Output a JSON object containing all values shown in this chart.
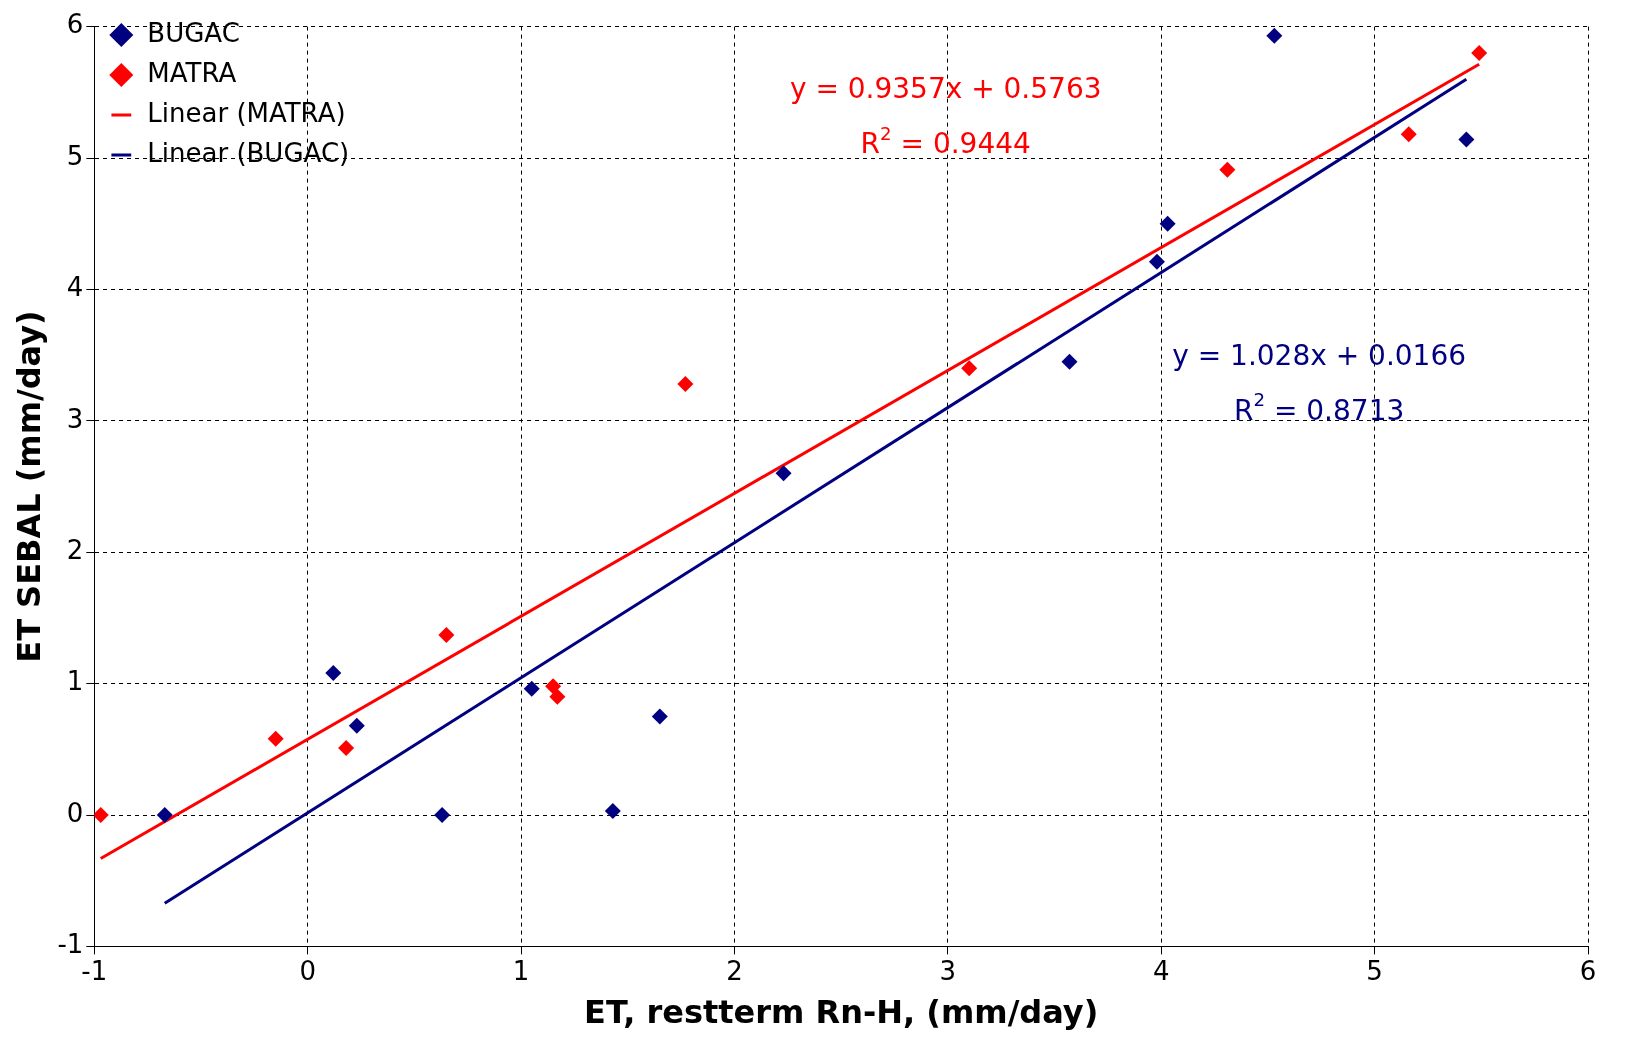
{
  "chart_data": {
    "type": "scatter",
    "xlabel": "ET, restterm Rn-H, (mm/day)",
    "ylabel": "ET SEBAL (mm/day)",
    "xlim": [
      -1,
      6
    ],
    "xticks": [
      -1,
      0,
      1,
      2,
      3,
      4,
      5,
      6
    ],
    "ylim": [
      -1,
      6
    ],
    "yticks": [
      -1,
      0,
      1,
      2,
      3,
      4,
      5,
      6
    ],
    "grid": true,
    "legend": "top left",
    "marker": "diamond",
    "series": [
      {
        "name": "BUGAC",
        "color": "#000080",
        "x": [
          -0.67,
          0.12,
          0.23,
          0.63,
          1.05,
          1.43,
          1.65,
          2.23,
          3.57,
          3.98,
          4.03,
          4.53,
          5.43
        ],
        "values": [
          0,
          1.08,
          0.68,
          0,
          0.96,
          0.03,
          0.75,
          2.6,
          3.45,
          4.21,
          4.5,
          5.93,
          5.14
        ]
      },
      {
        "name": "MATRA",
        "color": "#ff0000",
        "x": [
          -0.97,
          -0.15,
          0.18,
          0.65,
          1.15,
          1.17,
          1.77,
          3.1,
          4.31,
          5.16,
          5.49
        ],
        "values": [
          0,
          0.58,
          0.51,
          1.37,
          0.98,
          0.9,
          3.28,
          3.4,
          4.91,
          5.18,
          5.8
        ]
      },
      {
        "name": "Linear (MATRA)",
        "type": "line",
        "marker": "none",
        "color": "#ff0000",
        "x": [
          -0.97,
          5.49
        ],
        "values": [
          -0.331,
          5.713
        ]
      },
      {
        "name": "Linear (BUGAC)",
        "type": "line",
        "marker": "none",
        "color": "#000080",
        "x": [
          -0.67,
          5.43
        ],
        "values": [
          -0.672,
          5.599
        ]
      }
    ],
    "annotations": [
      "y = 0.9357x + 0.5763",
      "R$^{2}$ = 0.9444",
      "y = 1.028x + 0.0166",
      "R$^{2}$ = 0.8713"
    ]
  }
}
